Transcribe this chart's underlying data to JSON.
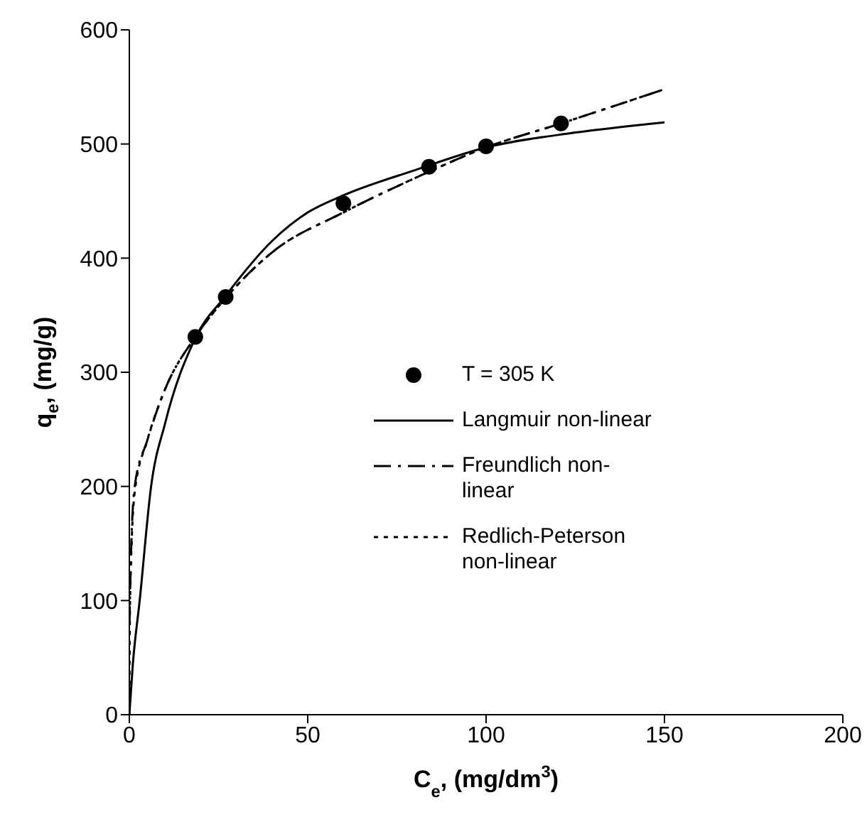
{
  "chart_data": {
    "type": "line",
    "xlabel": "C$_{e}$, (mg/dm$^{3}$)",
    "ylabel": "q$_{e}$, (mg/g)",
    "xlim": [
      0,
      200
    ],
    "xticks": [
      0,
      50,
      100,
      150,
      200
    ],
    "ylim": [
      0,
      600
    ],
    "yticks": [
      0,
      100,
      200,
      300,
      400,
      500,
      600
    ],
    "grid": false,
    "legend": "center",
    "series": [
      {
        "name": "T = 305 K",
        "type": "scatter",
        "marker": "circle",
        "color": "#000000",
        "x": [
          18.5,
          27,
          60,
          84,
          100,
          121
        ],
        "values": [
          331,
          366,
          448,
          480,
          498,
          518
        ]
      },
      {
        "name": "Langmuir non-linear",
        "marker": "none",
        "line_style": "solid",
        "color": "#000000",
        "x": [
          0,
          1,
          2.9,
          6.1,
          10,
          18.5,
          27,
          40,
          50,
          60,
          80,
          100,
          125,
          150
        ],
        "values": [
          0,
          45,
          100,
          200,
          255,
          330,
          367,
          415,
          440,
          455,
          477,
          497,
          510,
          519
        ]
      },
      {
        "name": "Freundlich non-linear",
        "marker": "none",
        "line_style": "dashed",
        "color": "#000000",
        "x": [
          0.05,
          0.3,
          1.5,
          5,
          10,
          18.5,
          27,
          40,
          60,
          80,
          100,
          121,
          150
        ],
        "values": [
          80,
          120,
          200,
          240,
          285,
          331,
          365,
          405,
          440,
          470,
          497,
          518,
          548
        ]
      },
      {
        "name": "Redlich-Peterson non-linear",
        "marker": "none",
        "line_style": "dotted",
        "color": "#000000",
        "x": [
          0,
          0.2,
          1.5,
          5,
          10,
          18.5,
          27,
          40,
          60,
          80,
          100,
          121,
          150
        ],
        "values": [
          0,
          100,
          195,
          240,
          285,
          331,
          365,
          405,
          440,
          470,
          497,
          518,
          548
        ]
      }
    ]
  }
}
